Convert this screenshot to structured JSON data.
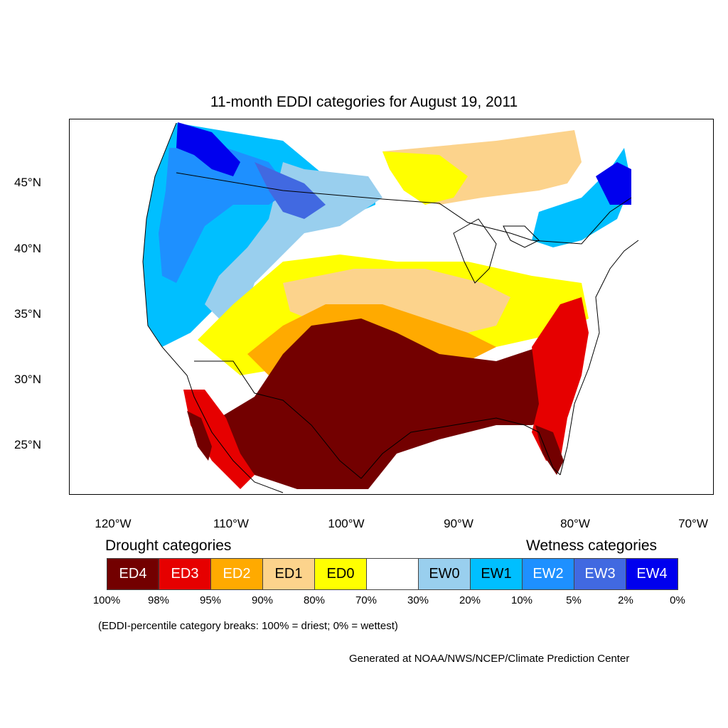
{
  "title": "11-month EDDI categories for August 19, 2011",
  "lat_labels": [
    "45°N",
    "40°N",
    "35°N",
    "30°N",
    "25°N"
  ],
  "lon_labels": [
    "120°W",
    "110°W",
    "100°W",
    "90°W",
    "80°W",
    "70°W"
  ],
  "legend": {
    "drought_heading": "Drought categories",
    "wetness_heading": "Wetness categories",
    "categories": [
      {
        "label": "ED4",
        "color": "#730000",
        "text_color": "#ffffff"
      },
      {
        "label": "ED3",
        "color": "#e60000",
        "text_color": "#ffffff"
      },
      {
        "label": "ED2",
        "color": "#ffaa00",
        "text_color": "#ffffff"
      },
      {
        "label": "ED1",
        "color": "#fcd38c",
        "text_color": "#000000"
      },
      {
        "label": "ED0",
        "color": "#ffff00",
        "text_color": "#000000"
      },
      {
        "label": "",
        "color": "#ffffff",
        "text_color": "#000000"
      },
      {
        "label": "EW0",
        "color": "#99cfee",
        "text_color": "#000000"
      },
      {
        "label": "EW1",
        "color": "#00bfff",
        "text_color": "#000000"
      },
      {
        "label": "EW2",
        "color": "#1e90ff",
        "text_color": "#ffffff"
      },
      {
        "label": "EW3",
        "color": "#4169e1",
        "text_color": "#ffffff"
      },
      {
        "label": "EW4",
        "color": "#0000ee",
        "text_color": "#ffffff"
      }
    ],
    "breaks": [
      "100%",
      "98%",
      "95%",
      "90%",
      "80%",
      "70%",
      "30%",
      "20%",
      "10%",
      "5%",
      "2%",
      "0%"
    ],
    "note": "(EDDI-percentile category breaks: 100% = driest; 0% = wettest)"
  },
  "credit": "Generated at NOAA/NWS/NCEP/Climate Prediction Center"
}
